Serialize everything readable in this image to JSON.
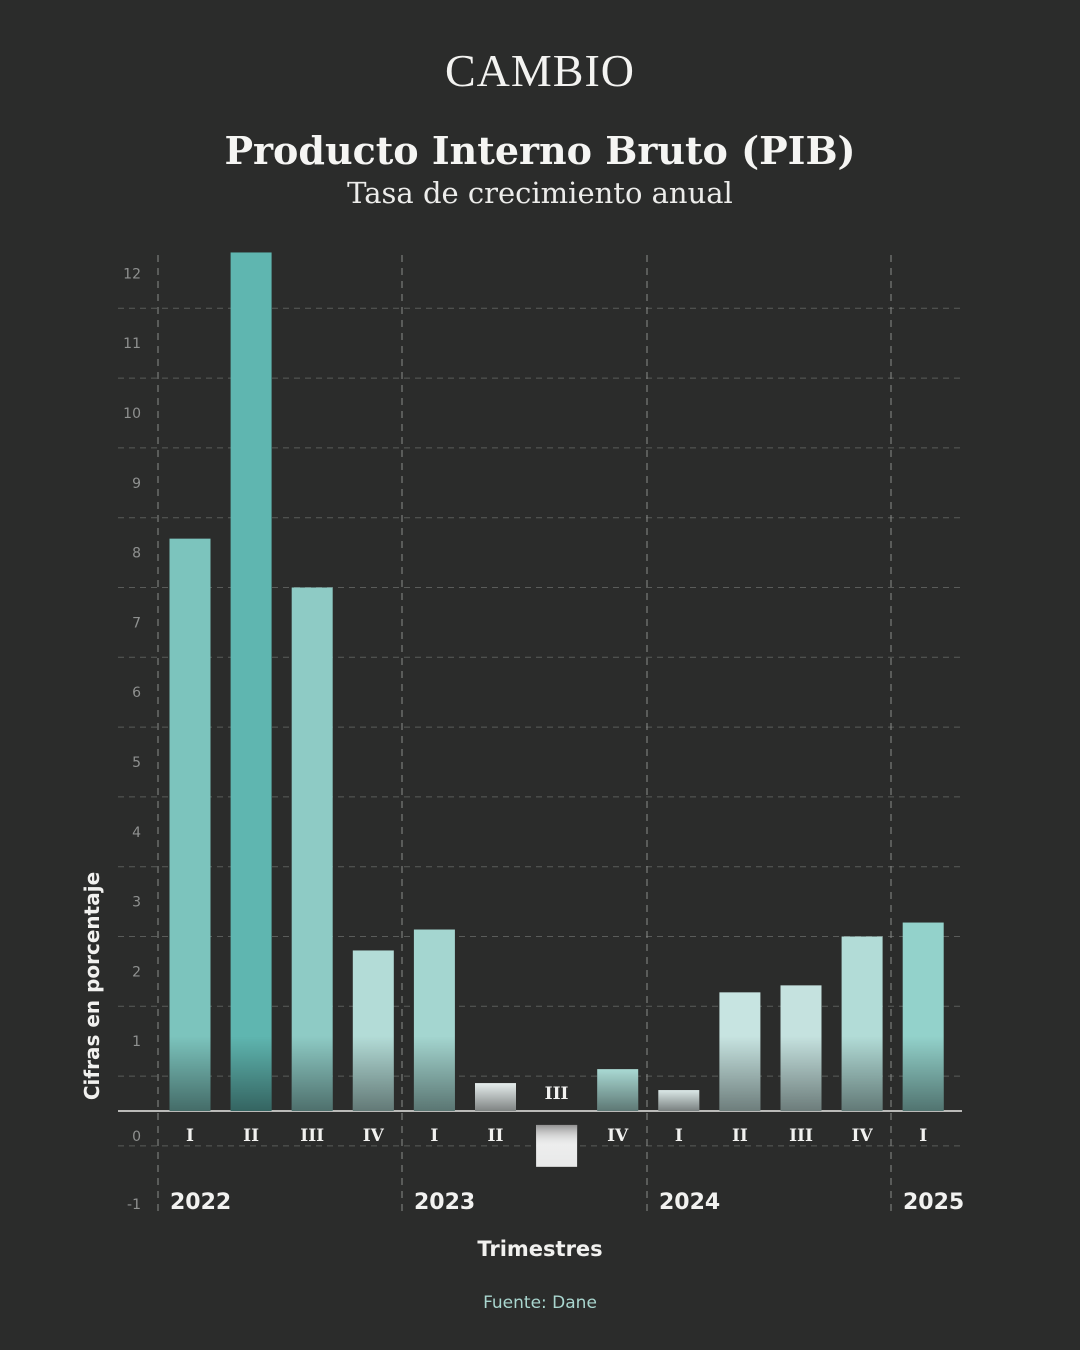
{
  "brand": "CAMBIO",
  "chart_data": {
    "type": "bar",
    "title": "Producto Interno Bruto (PIB)",
    "subtitle": "Tasa de crecimiento anual",
    "xlabel": "Trimestres",
    "ylabel": "Cifras en porcentaje",
    "source": "Fuente: Dane",
    "ylim": [
      -1,
      12.3
    ],
    "yticks": [
      -1,
      0,
      1,
      2,
      3,
      4,
      5,
      6,
      7,
      8,
      9,
      10,
      11,
      12
    ],
    "grid": true,
    "years": [
      "2022",
      "2023",
      "2024",
      "2025"
    ],
    "categories": [
      "I",
      "II",
      "III",
      "IV",
      "I",
      "II",
      "III",
      "IV",
      "I",
      "II",
      "III",
      "IV",
      "I"
    ],
    "year_of_category": [
      "2022",
      "2022",
      "2022",
      "2022",
      "2023",
      "2023",
      "2023",
      "2023",
      "2024",
      "2024",
      "2024",
      "2024",
      "2025"
    ],
    "values": [
      8.2,
      12.3,
      7.5,
      2.3,
      2.6,
      0.4,
      -0.6,
      0.6,
      0.3,
      1.7,
      1.8,
      2.5,
      2.7
    ],
    "colors": [
      "#7cc4bd",
      "#5fb6b0",
      "#8ecbc5",
      "#b3dcd7",
      "#a4d6d0",
      "#e6eeed",
      "#e8e9e9",
      "#a9d9d3",
      "#dbe8e7",
      "#c7e4e1",
      "#c5e2df",
      "#b2dcd7",
      "#93d2cb"
    ]
  }
}
